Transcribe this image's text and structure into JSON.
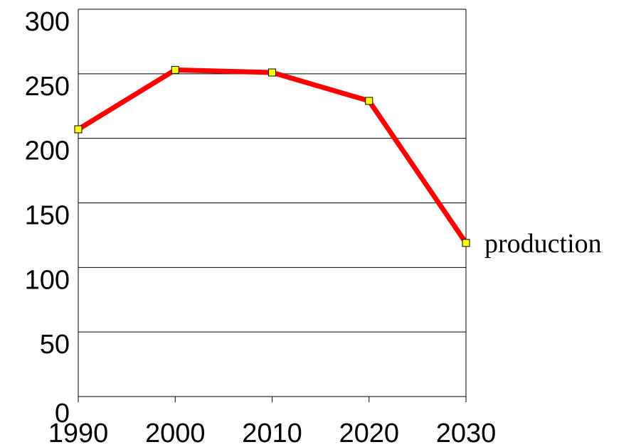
{
  "chart_data": {
    "type": "line",
    "x": [
      1990,
      2000,
      2010,
      2020,
      2030
    ],
    "series": [
      {
        "name": "production",
        "color": "#ff0000",
        "marker_color": "#ffff00",
        "values": [
          207,
          253,
          251,
          229,
          119
        ]
      }
    ],
    "xlim": [
      1990,
      2030
    ],
    "xticks": [
      1990,
      2000,
      2010,
      2020,
      2030
    ],
    "ylim": [
      0,
      300
    ],
    "yticks": [
      0,
      50,
      100,
      150,
      200,
      250,
      300
    ],
    "grid": true
  }
}
